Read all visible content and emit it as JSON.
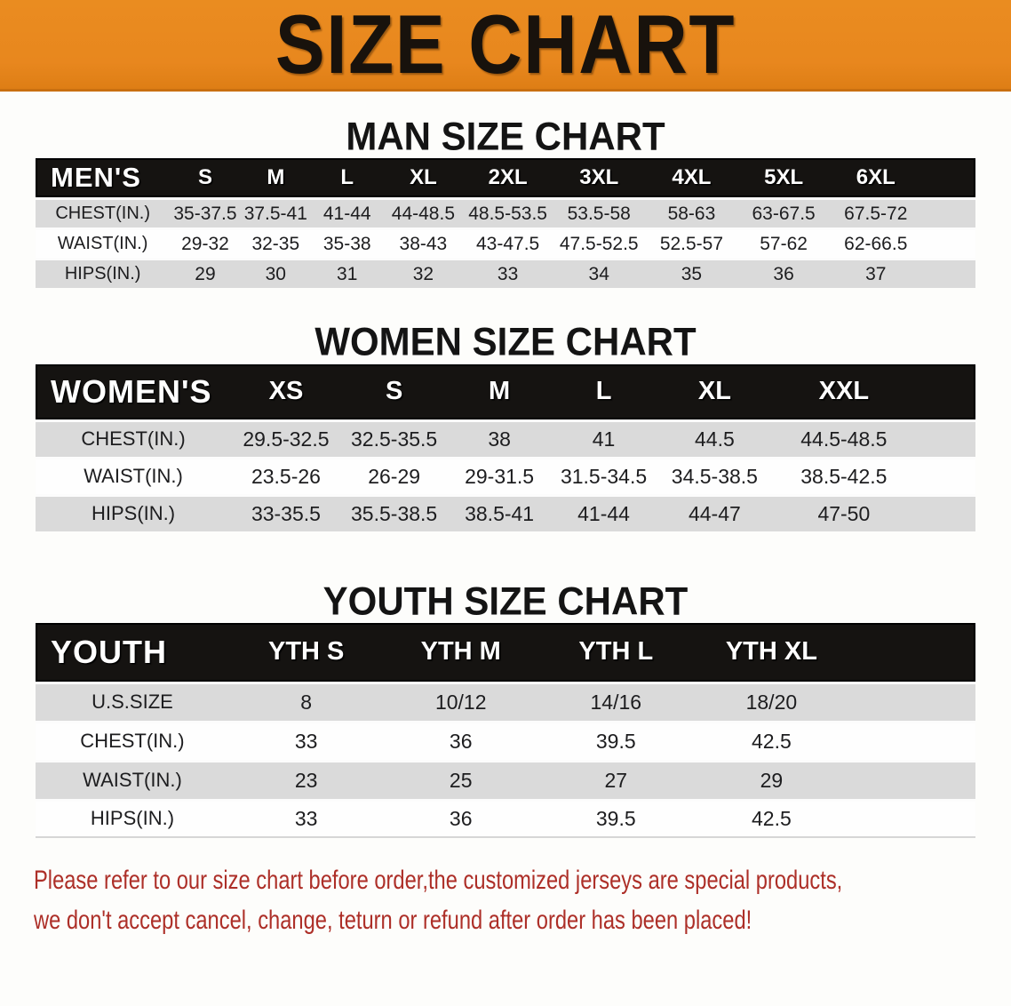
{
  "banner": {
    "title": "SIZE CHART",
    "bg_color": "#E8871E",
    "text_color": "#18120C"
  },
  "sections": [
    {
      "heading": "MAN SIZE CHART",
      "table": {
        "header_label": "MEN'S",
        "columns": [
          "S",
          "M",
          "L",
          "XL",
          "2XL",
          "3XL",
          "4XL",
          "5XL",
          "6XL"
        ],
        "rows": [
          {
            "label": "CHEST(IN.)",
            "values": [
              "35-37.5",
              "37.5-41",
              "41-44",
              "44-48.5",
              "48.5-53.5",
              "53.5-58",
              "58-63",
              "63-67.5",
              "67.5-72"
            ]
          },
          {
            "label": "WAIST(IN.)",
            "values": [
              "29-32",
              "32-35",
              "35-38",
              "38-43",
              "43-47.5",
              "47.5-52.5",
              "52.5-57",
              "57-62",
              "62-66.5"
            ]
          },
          {
            "label": "HIPS(IN.)",
            "values": [
              "29",
              "30",
              "31",
              "32",
              "33",
              "34",
              "35",
              "36",
              "37"
            ]
          }
        ]
      }
    },
    {
      "heading": "WOMEN SIZE CHART",
      "table": {
        "header_label": "WOMEN'S",
        "columns": [
          "XS",
          "S",
          "M",
          "L",
          "XL",
          "XXL"
        ],
        "rows": [
          {
            "label": "CHEST(IN.)",
            "values": [
              "29.5-32.5",
              "32.5-35.5",
              "38",
              "41",
              "44.5",
              "44.5-48.5"
            ]
          },
          {
            "label": "WAIST(IN.)",
            "values": [
              "23.5-26",
              "26-29",
              "29-31.5",
              "31.5-34.5",
              "34.5-38.5",
              "38.5-42.5"
            ]
          },
          {
            "label": "HIPS(IN.)",
            "values": [
              "33-35.5",
              "35.5-38.5",
              "38.5-41",
              "41-44",
              "44-47",
              "47-50"
            ]
          }
        ]
      }
    },
    {
      "heading": "YOUTH SIZE CHART",
      "table": {
        "header_label": "YOUTH",
        "columns": [
          "YTH S",
          "YTH M",
          "YTH L",
          "YTH XL"
        ],
        "rows": [
          {
            "label": "U.S.SIZE",
            "values": [
              "8",
              "10/12",
              "14/16",
              "18/20"
            ]
          },
          {
            "label": "CHEST(IN.)",
            "values": [
              "33",
              "36",
              "39.5",
              "42.5"
            ]
          },
          {
            "label": "WAIST(IN.)",
            "values": [
              "23",
              "25",
              "27",
              "29"
            ]
          },
          {
            "label": "HIPS(IN.)",
            "values": [
              "33",
              "36",
              "39.5",
              "42.5"
            ]
          }
        ]
      }
    }
  ],
  "disclaimer": {
    "line1": "Please refer to our size chart before order,the customized jerseys are special products,",
    "line2": "we don't accept cancel, change, teturn or refund after order has been placed!",
    "color": "#AD2F28"
  }
}
